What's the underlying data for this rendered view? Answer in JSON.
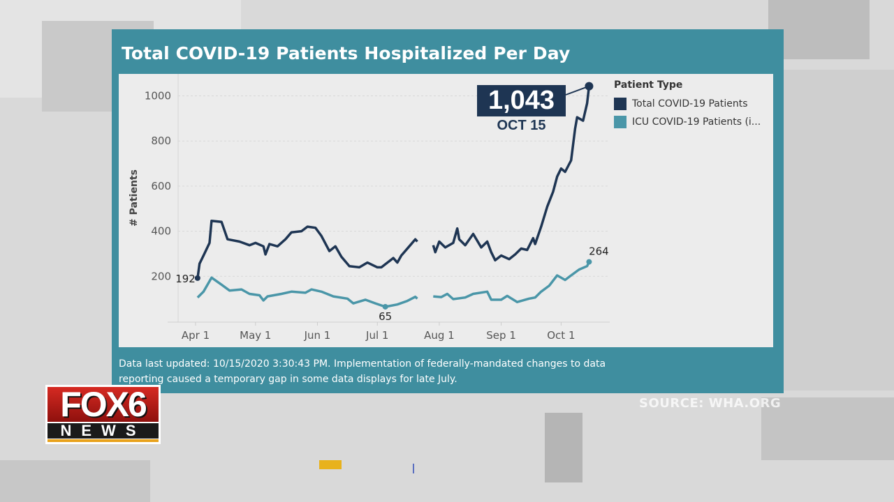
{
  "title": "Total COVID-19 Patients Hospitalized Per Day",
  "footer": "Data last updated: 10/15/2020 3:30:43 PM. Implementation of federally-mandated changes to data reporting caused a temporary gap in some data displays for late July.",
  "source": "SOURCE: WHA.ORG",
  "logo": {
    "top": "FOX6",
    "bottom": "NEWS"
  },
  "callout": {
    "value": "1,043",
    "date": "OCT 15"
  },
  "chart_data": {
    "type": "line",
    "title": "Total COVID-19 Patients Hospitalized Per Day",
    "ylabel": "# Patients",
    "xlabel": "",
    "ylim": [
      0,
      1080
    ],
    "yticks": [
      "200",
      "400",
      "600",
      "800",
      "1000"
    ],
    "xticks": [
      {
        "label": "Apr 1",
        "date": "2020-04-01"
      },
      {
        "label": "May 1",
        "date": "2020-05-01"
      },
      {
        "label": "Jun 1",
        "date": "2020-06-01"
      },
      {
        "label": "Jul 1",
        "date": "2020-07-01"
      },
      {
        "label": "Aug 1",
        "date": "2020-08-01"
      },
      {
        "label": "Sep 1",
        "date": "2020-09-01"
      },
      {
        "label": "Oct 1",
        "date": "2020-10-01"
      }
    ],
    "grid": true,
    "legend": {
      "position": "right",
      "title": "Patient Type"
    },
    "series": [
      {
        "name": "Total COVID-19 Patients",
        "color": "#1e3553",
        "points": [
          [
            "2020-04-02",
            192
          ],
          [
            "2020-04-03",
            256
          ],
          [
            "2020-04-05",
            292
          ],
          [
            "2020-04-08",
            348
          ],
          [
            "2020-04-09",
            446
          ],
          [
            "2020-04-14",
            441
          ],
          [
            "2020-04-17",
            364
          ],
          [
            "2020-04-23",
            354
          ],
          [
            "2020-04-28",
            338
          ],
          [
            "2020-05-01",
            348
          ],
          [
            "2020-05-05",
            333
          ],
          [
            "2020-05-06",
            297
          ],
          [
            "2020-05-08",
            343
          ],
          [
            "2020-05-12",
            333
          ],
          [
            "2020-05-16",
            364
          ],
          [
            "2020-05-19",
            395
          ],
          [
            "2020-05-24",
            400
          ],
          [
            "2020-05-27",
            420
          ],
          [
            "2020-05-31",
            415
          ],
          [
            "2020-06-03",
            379
          ],
          [
            "2020-06-07",
            312
          ],
          [
            "2020-06-10",
            333
          ],
          [
            "2020-06-13",
            287
          ],
          [
            "2020-06-17",
            245
          ],
          [
            "2020-06-22",
            240
          ],
          [
            "2020-06-26",
            261
          ],
          [
            "2020-07-01",
            240
          ],
          [
            "2020-07-03",
            240
          ],
          [
            "2020-07-09",
            281
          ],
          [
            "2020-07-11",
            261
          ],
          [
            "2020-07-13",
            292
          ],
          [
            "2020-07-17",
            333
          ],
          [
            "2020-07-20",
            364
          ],
          [
            "2020-07-21",
            354
          ],
          null,
          [
            "2020-07-29",
            338
          ],
          [
            "2020-07-30",
            307
          ],
          [
            "2020-08-01",
            354
          ],
          [
            "2020-08-04",
            328
          ],
          [
            "2020-08-08",
            348
          ],
          [
            "2020-08-10",
            412
          ],
          [
            "2020-08-11",
            364
          ],
          [
            "2020-08-14",
            338
          ],
          [
            "2020-08-18",
            388
          ],
          [
            "2020-08-22",
            328
          ],
          [
            "2020-08-25",
            354
          ],
          [
            "2020-08-27",
            307
          ],
          [
            "2020-08-29",
            271
          ],
          [
            "2020-09-01",
            292
          ],
          [
            "2020-09-05",
            276
          ],
          [
            "2020-09-08",
            297
          ],
          [
            "2020-09-11",
            323
          ],
          [
            "2020-09-14",
            317
          ],
          [
            "2020-09-17",
            369
          ],
          [
            "2020-09-18",
            343
          ],
          [
            "2020-09-21",
            420
          ],
          [
            "2020-09-24",
            508
          ],
          [
            "2020-09-27",
            575
          ],
          [
            "2020-09-29",
            642
          ],
          [
            "2020-10-01",
            678
          ],
          [
            "2020-10-03",
            663
          ],
          [
            "2020-10-06",
            714
          ],
          [
            "2020-10-08",
            854
          ],
          [
            "2020-10-09",
            905
          ],
          [
            "2020-10-12",
            890
          ],
          [
            "2020-10-14",
            967
          ],
          [
            "2020-10-15",
            1043
          ]
        ],
        "labels": [
          {
            "date": "2020-04-02",
            "value": 192,
            "text": "192"
          },
          {
            "date": "2020-10-15",
            "value": 1043,
            "text": "1,043"
          }
        ]
      },
      {
        "name": "ICU COVID-19 Patients (i...",
        "color": "#4a96a8",
        "points": [
          [
            "2020-04-02",
            106
          ],
          [
            "2020-04-05",
            132
          ],
          [
            "2020-04-09",
            194
          ],
          [
            "2020-04-14",
            163
          ],
          [
            "2020-04-18",
            137
          ],
          [
            "2020-04-24",
            142
          ],
          [
            "2020-04-28",
            122
          ],
          [
            "2020-05-03",
            116
          ],
          [
            "2020-05-05",
            93
          ],
          [
            "2020-05-07",
            111
          ],
          [
            "2020-05-14",
            122
          ],
          [
            "2020-05-19",
            132
          ],
          [
            "2020-05-26",
            127
          ],
          [
            "2020-05-29",
            142
          ],
          [
            "2020-06-03",
            132
          ],
          [
            "2020-06-09",
            111
          ],
          [
            "2020-06-16",
            101
          ],
          [
            "2020-06-19",
            80
          ],
          [
            "2020-06-25",
            96
          ],
          [
            "2020-06-30",
            80
          ],
          [
            "2020-07-05",
            65
          ],
          [
            "2020-07-11",
            75
          ],
          [
            "2020-07-16",
            91
          ],
          [
            "2020-07-20",
            109
          ],
          [
            "2020-07-21",
            101
          ],
          null,
          [
            "2020-07-29",
            111
          ],
          [
            "2020-08-02",
            108
          ],
          [
            "2020-08-05",
            122
          ],
          [
            "2020-08-08",
            99
          ],
          [
            "2020-08-14",
            106
          ],
          [
            "2020-08-18",
            122
          ],
          [
            "2020-08-25",
            132
          ],
          [
            "2020-08-27",
            96
          ],
          [
            "2020-09-01",
            96
          ],
          [
            "2020-09-04",
            113
          ],
          [
            "2020-09-09",
            86
          ],
          [
            "2020-09-15",
            101
          ],
          [
            "2020-09-18",
            106
          ],
          [
            "2020-09-21",
            132
          ],
          [
            "2020-09-25",
            158
          ],
          [
            "2020-09-29",
            204
          ],
          [
            "2020-10-03",
            184
          ],
          [
            "2020-10-06",
            204
          ],
          [
            "2020-10-10",
            230
          ],
          [
            "2020-10-14",
            245
          ],
          [
            "2020-10-15",
            264
          ]
        ],
        "labels": [
          {
            "date": "2020-07-05",
            "value": 65,
            "text": "65"
          },
          {
            "date": "2020-10-15",
            "value": 264,
            "text": "264"
          }
        ]
      }
    ]
  }
}
